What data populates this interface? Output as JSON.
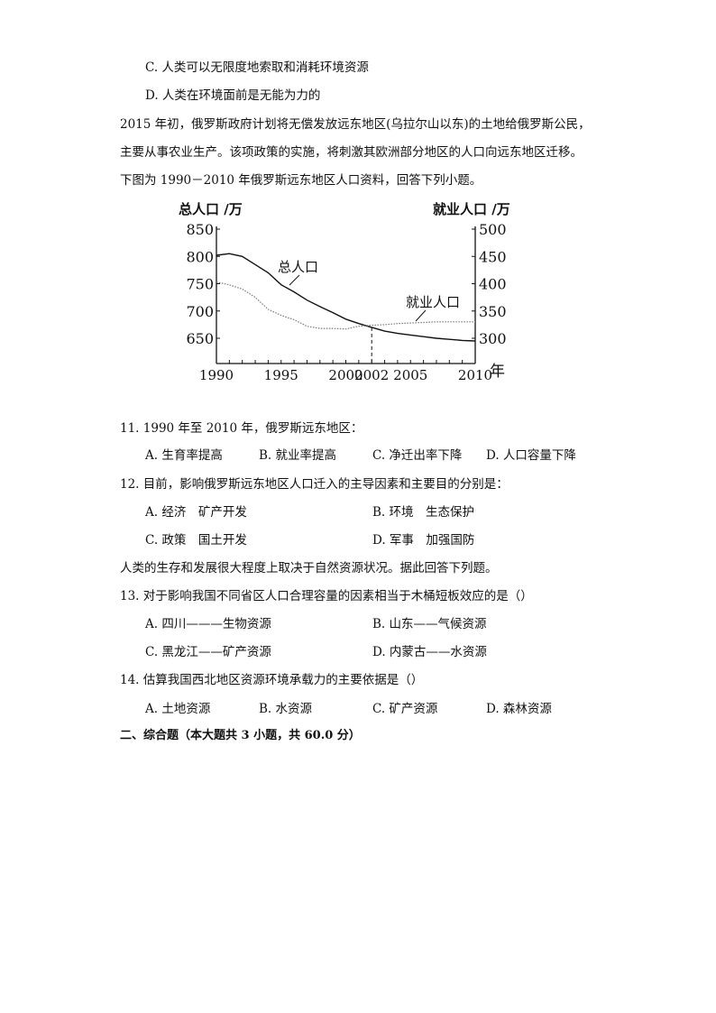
{
  "prev_options": {
    "c": "C. 人类可以无限度地索取和消耗环境资源",
    "d": "D. 人类在环境面前是无能为力的"
  },
  "passage": [
    "2015 年初，俄罗斯政府计划将无偿发放远东地区(乌拉尔山以东)的土地给俄罗斯公民，",
    "主要从事农业生产。该项政策的实施，将刺激其欧洲部分地区的人口向远东地区迁移。",
    "下图为 1990－2010 年俄罗斯远东地区人口资料，回答下列小题。"
  ],
  "chart_data": {
    "type": "line",
    "ylabel_left": "总人口 /万",
    "ylabel_right": "就业人口 /万",
    "xlabel": "年",
    "x_ticks": [
      "1990",
      "1995",
      "2000",
      "2002",
      "2005",
      "2010"
    ],
    "y_left_ticks": [
      "850",
      "800",
      "750",
      "700",
      "650"
    ],
    "y_right_ticks": [
      "500",
      "450",
      "400",
      "350",
      "300"
    ],
    "xlim": [
      1990,
      2010
    ],
    "ylim_left": [
      600,
      850
    ],
    "ylim_right": [
      250,
      500
    ],
    "marker_year": 2002,
    "series": [
      {
        "name": "总人口",
        "axis": "left",
        "style": "solid",
        "x": [
          1990,
          1991,
          1992,
          1993,
          1994,
          1995,
          1996,
          1997,
          1998,
          1999,
          2000,
          2001,
          2002,
          2003,
          2004,
          2005,
          2006,
          2007,
          2008,
          2009,
          2010
        ],
        "values": [
          802,
          805,
          800,
          785,
          770,
          748,
          735,
          720,
          708,
          697,
          685,
          677,
          670,
          663,
          659,
          656,
          653,
          650,
          648,
          646,
          645
        ]
      },
      {
        "name": "就业人口",
        "axis": "right",
        "style": "dotted",
        "x": [
          1990,
          1991,
          1992,
          1993,
          1994,
          1995,
          1996,
          1997,
          1998,
          1999,
          2000,
          2001,
          2002,
          2003,
          2004,
          2005,
          2006,
          2007,
          2008,
          2009,
          2010
        ],
        "values": [
          403,
          398,
          390,
          375,
          353,
          342,
          334,
          322,
          318,
          318,
          317,
          322,
          324,
          325,
          327,
          328,
          329,
          330,
          330,
          330,
          330
        ]
      }
    ]
  },
  "questions": [
    {
      "stem": "11. 1990 年至 2010 年，俄罗斯远东地区：",
      "options": [
        "A. 生育率提高",
        "B. 就业率提高",
        "C. 净迁出率下降",
        "D. 人口容量下降"
      ]
    },
    {
      "stem": "12. 目前，影响俄罗斯远东地区人口迁入的主导因素和主要目的分别是：",
      "options": [
        "A. 经济　矿产开发",
        "B. 环境　生态保护",
        "C. 政策　国土开发",
        "D. 军事　加强国防"
      ]
    },
    {
      "stem": "13. 对于影响我国不同省区人口合理容量的因素相当于木桶短板效应的是（）",
      "options": [
        "A. 四川———生物资源",
        "B. 山东——气候资源",
        "C. 黑龙江——矿产资源",
        "D. 内蒙古——水资源"
      ]
    },
    {
      "stem": "14. 估算我国西北地区资源环境承载力的主要依据是（）",
      "options": [
        "A. 土地资源",
        "B. 水资源",
        "C. 矿产资源",
        "D. 森林资源"
      ]
    }
  ],
  "intro2": "人类的生存和发展很大程度上取决于自然资源状况。据此回答下列题。",
  "section_title": "二、综合题（本大题共 3 小题，共 60.0 分）"
}
